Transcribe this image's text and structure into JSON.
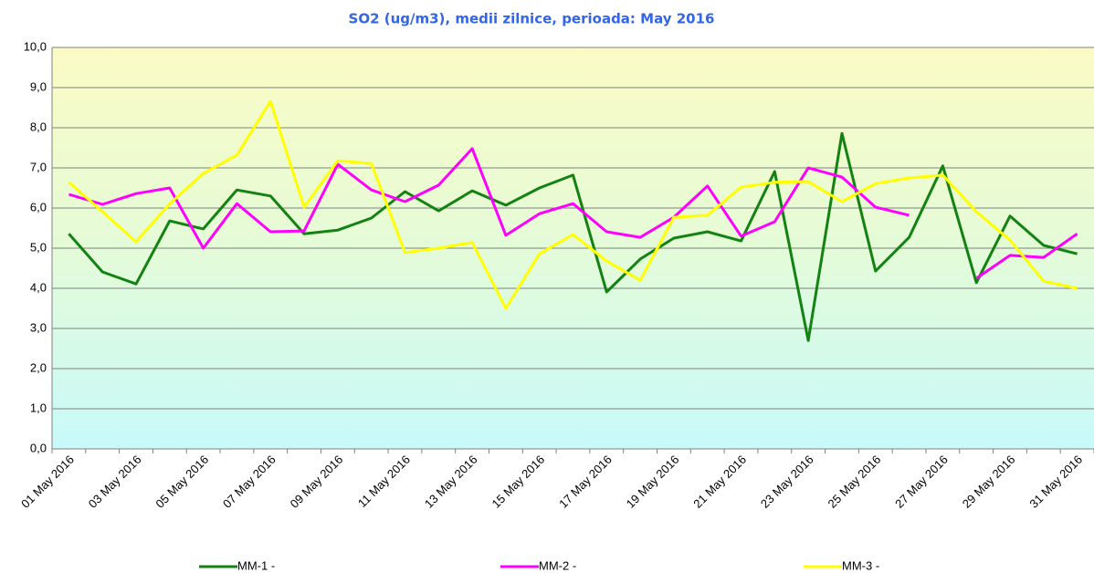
{
  "chart_data": {
    "type": "line",
    "title": "SO2 (ug/m3), medii zilnice, perioada: May 2016",
    "categories": [
      "01 May 2016",
      null,
      "03 May 2016",
      null,
      "05 May 2016",
      null,
      "07 May 2016",
      null,
      "09 May 2016",
      null,
      "11 May 2016",
      null,
      "13 May 2016",
      null,
      "15 May 2016",
      null,
      "17 May 2016",
      null,
      "19 May 2016",
      null,
      "21 May 2016",
      null,
      "23 May 2016",
      null,
      "25 May 2016",
      null,
      "27 May 2016",
      null,
      "29 May 2016",
      null,
      "31 May 2016"
    ],
    "series": [
      {
        "name": "MM-1 -",
        "color": "#138213",
        "values": [
          5.36,
          4.41,
          4.11,
          5.68,
          5.48,
          6.45,
          6.3,
          5.36,
          5.45,
          5.75,
          6.41,
          5.93,
          6.43,
          6.07,
          6.5,
          6.82,
          3.91,
          4.73,
          5.25,
          5.41,
          5.18,
          6.91,
          2.7,
          7.86,
          4.43,
          5.27,
          7.05,
          4.14,
          5.8,
          5.07,
          4.86
        ]
      },
      {
        "name": "MM-2 -",
        "color": "#ff00ff",
        "values": [
          6.34,
          6.09,
          6.36,
          6.5,
          5.0,
          6.11,
          5.41,
          5.43,
          7.09,
          6.45,
          6.16,
          6.57,
          7.48,
          5.32,
          5.86,
          6.11,
          5.41,
          5.27,
          5.77,
          6.55,
          5.3,
          5.66,
          7.0,
          6.77,
          6.02,
          5.82,
          null,
          4.25,
          4.82,
          4.77,
          5.36
        ]
      },
      {
        "name": "MM-3 -",
        "color": "#ffff00",
        "values": [
          6.64,
          5.91,
          5.16,
          6.11,
          6.86,
          7.32,
          8.66,
          6.02,
          7.18,
          7.11,
          4.89,
          5.0,
          5.14,
          3.5,
          4.86,
          5.34,
          4.68,
          4.2,
          5.77,
          5.82,
          6.52,
          6.64,
          6.66,
          6.16,
          6.61,
          6.75,
          6.82,
          5.91,
          5.2,
          4.18,
          4.0
        ]
      }
    ],
    "ylim": [
      0,
      10
    ],
    "yticks": [
      {
        "value": 0,
        "label": "0,0"
      },
      {
        "value": 1,
        "label": "1,0"
      },
      {
        "value": 2,
        "label": "2,0"
      },
      {
        "value": 3,
        "label": "3,0"
      },
      {
        "value": 4,
        "label": "4,0"
      },
      {
        "value": 5,
        "label": "5,0"
      },
      {
        "value": 6,
        "label": "6,0"
      },
      {
        "value": 7,
        "label": "7,0"
      },
      {
        "value": 8,
        "label": "8,0"
      },
      {
        "value": 9,
        "label": "9,0"
      },
      {
        "value": 10,
        "label": "10,0"
      }
    ],
    "grid": true
  }
}
